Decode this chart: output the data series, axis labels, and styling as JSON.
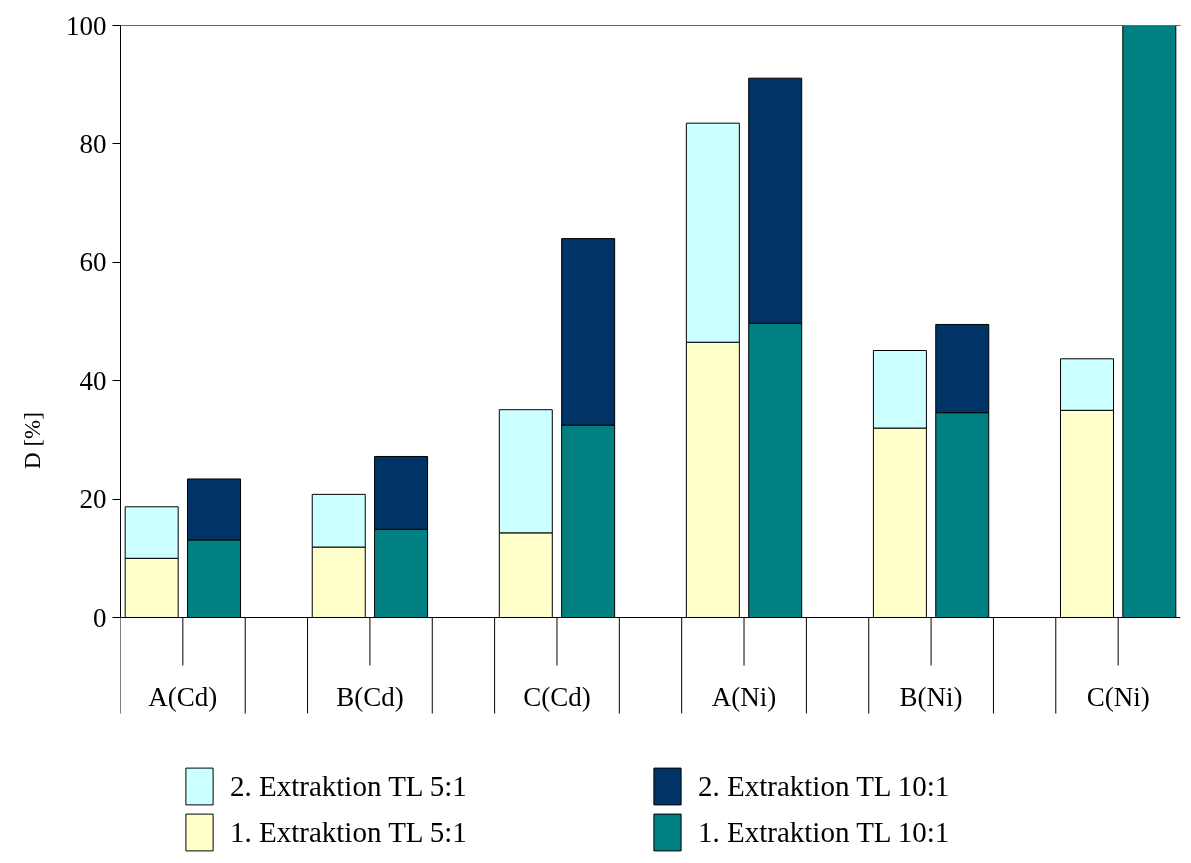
{
  "chart_data": {
    "type": "bar",
    "ylabel": "D [%]",
    "categories": [
      "A(Cd)",
      null,
      null,
      "B(Cd)",
      null,
      null,
      "C(Cd)",
      null,
      null,
      "A(Ni)",
      null,
      null,
      "B(Ni)",
      null,
      null,
      "C(Ni)",
      null
    ],
    "series": [
      {
        "name": "1. Extraktion TL 5:1",
        "color": "#ffffcc",
        "values": [
          10,
          null,
          null,
          11.9,
          null,
          null,
          14.3,
          null,
          null,
          46.5,
          null,
          null,
          32,
          null,
          null,
          35,
          null
        ]
      },
      {
        "name": "2. Extraktion TL 5:1",
        "color": "#ccffff",
        "values": [
          8.7,
          null,
          null,
          8.9,
          null,
          null,
          20.8,
          null,
          null,
          37,
          null,
          null,
          13.1,
          null,
          null,
          8.7,
          null
        ]
      },
      {
        "name": "1. Extraktion TL 10:1",
        "color": "#008080",
        "values": [
          null,
          13.1,
          null,
          null,
          14.9,
          null,
          null,
          32.5,
          null,
          null,
          49.7,
          null,
          null,
          34.6,
          null,
          null,
          100
        ]
      },
      {
        "name": "2. Extraktion TL 10:1",
        "color": "#003366",
        "values": [
          null,
          10.3,
          null,
          null,
          12.3,
          null,
          null,
          31.5,
          null,
          null,
          41.4,
          null,
          null,
          14.9,
          null,
          null,
          null
        ]
      }
    ],
    "stacked": true,
    "ylim": [
      0,
      100
    ],
    "yticks": [
      0,
      20,
      40,
      60,
      80,
      100
    ],
    "legend": "bottom"
  }
}
